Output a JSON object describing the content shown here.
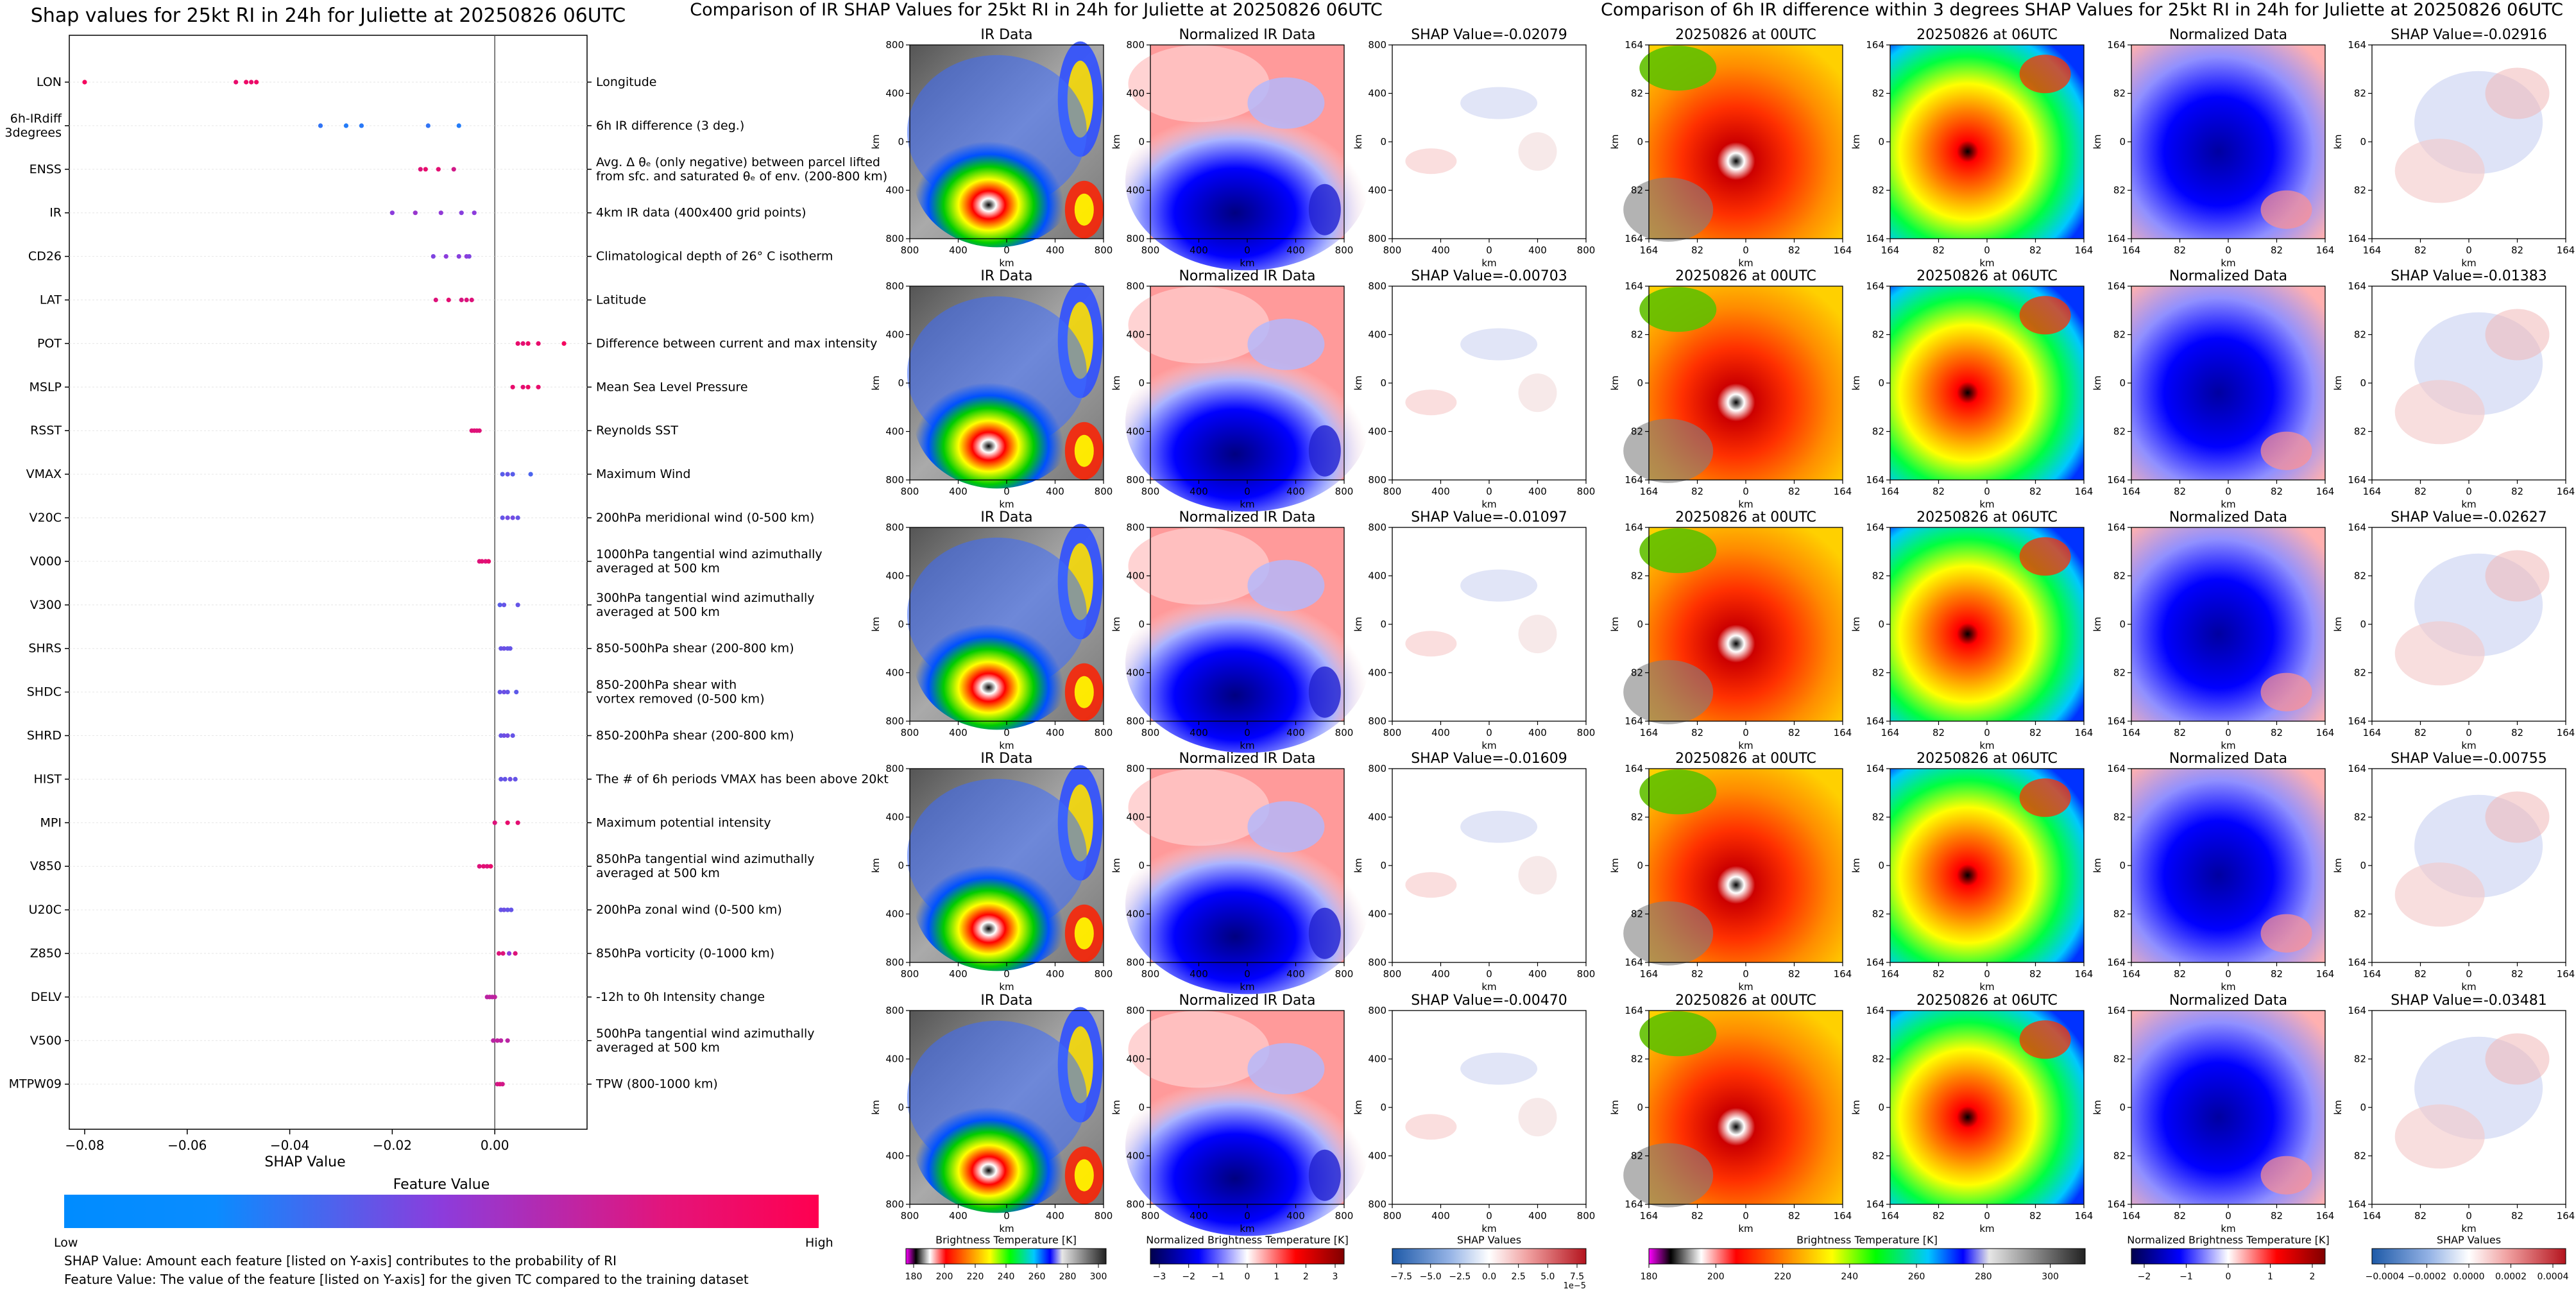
{
  "colors": {
    "low": "#0a8cff",
    "mid": "#8c3cdc",
    "high": "#ff0050",
    "axis": "#000000"
  },
  "chart_data": [
    {
      "type": "scatter",
      "title": "Shap values for 25kt RI in 24h for Juliette at 20250826 06UTC",
      "xlabel": "SHAP Value",
      "xlim": [
        -0.083,
        0.018
      ],
      "x_ticks": [
        -0.08,
        -0.06,
        -0.04,
        -0.02,
        0.0
      ],
      "x_tick_labels": [
        "−0.08",
        "−0.06",
        "−0.04",
        "−0.02",
        "0.00"
      ],
      "features": [
        {
          "name": "LON",
          "desc": [
            "Longitude"
          ],
          "points": [
            [
              -0.08,
              0.95
            ],
            [
              -0.0505,
              0.9
            ],
            [
              -0.0485,
              0.92
            ],
            [
              -0.0475,
              0.9
            ],
            [
              -0.0465,
              0.93
            ]
          ]
        },
        {
          "name": [
            "6h-IRdiff",
            "3degrees"
          ],
          "desc": [
            "6h IR difference (3 deg.)"
          ],
          "points": [
            [
              -0.034,
              0.15
            ],
            [
              -0.029,
              0.1
            ],
            [
              -0.026,
              0.12
            ],
            [
              -0.013,
              0.15
            ],
            [
              -0.007,
              0.1
            ]
          ]
        },
        {
          "name": "ENSS",
          "desc": [
            "Avg. Δ θₑ (only negative) between parcel lifted",
            "from sfc. and saturated θₑ of env. (200-800 km)"
          ],
          "points": [
            [
              -0.0145,
              0.85
            ],
            [
              -0.0135,
              0.9
            ],
            [
              -0.011,
              0.88
            ],
            [
              -0.008,
              0.8
            ]
          ]
        },
        {
          "name": "IR",
          "desc": [
            "4km IR data (400x400 grid points)"
          ],
          "points": [
            [
              -0.02,
              0.5
            ],
            [
              -0.0155,
              0.55
            ],
            [
              -0.0105,
              0.52
            ],
            [
              -0.0065,
              0.48
            ],
            [
              -0.004,
              0.5
            ]
          ]
        },
        {
          "name": "CD26",
          "desc": [
            "Climatological depth of 26° C isotherm"
          ],
          "points": [
            [
              -0.012,
              0.45
            ],
            [
              -0.0095,
              0.5
            ],
            [
              -0.007,
              0.48
            ],
            [
              -0.0055,
              0.5
            ],
            [
              -0.005,
              0.45
            ]
          ]
        },
        {
          "name": "LAT",
          "desc": [
            "Latitude"
          ],
          "points": [
            [
              -0.0115,
              0.85
            ],
            [
              -0.009,
              0.88
            ],
            [
              -0.0065,
              0.82
            ],
            [
              -0.0055,
              0.85
            ],
            [
              -0.0045,
              0.85
            ]
          ]
        },
        {
          "name": "POT",
          "desc": [
            "Difference between current and max intensity"
          ],
          "points": [
            [
              0.0045,
              0.9
            ],
            [
              0.0055,
              0.88
            ],
            [
              0.0065,
              0.92
            ],
            [
              0.0085,
              0.9
            ],
            [
              0.0135,
              0.95
            ]
          ]
        },
        {
          "name": "MSLP",
          "desc": [
            "Mean Sea Level Pressure"
          ],
          "points": [
            [
              0.0035,
              0.9
            ],
            [
              0.0055,
              0.88
            ],
            [
              0.0065,
              0.92
            ],
            [
              0.0085,
              0.9
            ]
          ]
        },
        {
          "name": "RSST",
          "desc": [
            "Reynolds SST"
          ],
          "points": [
            [
              -0.0045,
              0.85
            ],
            [
              -0.004,
              0.87
            ],
            [
              -0.0035,
              0.85
            ],
            [
              -0.003,
              0.86
            ]
          ]
        },
        {
          "name": "VMAX",
          "desc": [
            "Maximum Wind"
          ],
          "points": [
            [
              0.0015,
              0.3
            ],
            [
              0.0025,
              0.35
            ],
            [
              0.0035,
              0.3
            ],
            [
              0.007,
              0.25
            ]
          ]
        },
        {
          "name": "V20C",
          "desc": [
            "200hPa meridional wind (0-500 km)"
          ],
          "points": [
            [
              0.0015,
              0.35
            ],
            [
              0.0025,
              0.4
            ],
            [
              0.0035,
              0.4
            ],
            [
              0.0045,
              0.35
            ]
          ]
        },
        {
          "name": "V000",
          "desc": [
            "1000hPa tangential wind azimuthally",
            "averaged at 500 km"
          ],
          "points": [
            [
              -0.003,
              0.85
            ],
            [
              -0.0025,
              0.88
            ],
            [
              -0.0018,
              0.85
            ],
            [
              -0.0012,
              0.9
            ]
          ]
        },
        {
          "name": "V300",
          "desc": [
            "300hPa tangential wind azimuthally",
            "averaged at 500 km"
          ],
          "points": [
            [
              0.001,
              0.3
            ],
            [
              0.0018,
              0.35
            ],
            [
              0.0045,
              0.35
            ]
          ]
        },
        {
          "name": "SHRS",
          "desc": [
            "850-500hPa shear (200-800 km)"
          ],
          "points": [
            [
              0.0012,
              0.35
            ],
            [
              0.0018,
              0.38
            ],
            [
              0.0025,
              0.35
            ],
            [
              0.003,
              0.35
            ]
          ]
        },
        {
          "name": "SHDC",
          "desc": [
            "850-200hPa shear with",
            "vortex removed (0-500 km)"
          ],
          "points": [
            [
              0.001,
              0.35
            ],
            [
              0.0018,
              0.38
            ],
            [
              0.0025,
              0.35
            ],
            [
              0.0042,
              0.32
            ]
          ]
        },
        {
          "name": "SHRD",
          "desc": [
            "850-200hPa shear (200-800 km)"
          ],
          "points": [
            [
              0.0012,
              0.35
            ],
            [
              0.0018,
              0.38
            ],
            [
              0.0025,
              0.4
            ],
            [
              0.0035,
              0.35
            ]
          ]
        },
        {
          "name": "HIST",
          "desc": [
            "The # of 6h periods VMAX has been above 20kt"
          ],
          "points": [
            [
              0.0012,
              0.35
            ],
            [
              0.002,
              0.35
            ],
            [
              0.003,
              0.38
            ],
            [
              0.004,
              0.35
            ]
          ]
        },
        {
          "name": "MPI",
          "desc": [
            "Maximum potential intensity"
          ],
          "points": [
            [
              0.0,
              0.85
            ],
            [
              0.0025,
              0.9
            ],
            [
              0.0045,
              0.88
            ]
          ]
        },
        {
          "name": "V850",
          "desc": [
            "850hPa tangential wind azimuthally",
            "averaged at 500 km"
          ],
          "points": [
            [
              -0.003,
              0.85
            ],
            [
              -0.0022,
              0.88
            ],
            [
              -0.0015,
              0.85
            ],
            [
              -0.0008,
              0.9
            ]
          ]
        },
        {
          "name": "U20C",
          "desc": [
            "200hPa zonal wind (0-500 km)"
          ],
          "points": [
            [
              0.0012,
              0.35
            ],
            [
              0.0018,
              0.38
            ],
            [
              0.0025,
              0.35
            ],
            [
              0.0032,
              0.35
            ]
          ]
        },
        {
          "name": "Z850",
          "desc": [
            "850hPa vorticity (0-1000 km)"
          ],
          "points": [
            [
              0.0008,
              0.85
            ],
            [
              0.0016,
              0.85
            ],
            [
              0.0028,
              0.5
            ],
            [
              0.004,
              0.85
            ]
          ]
        },
        {
          "name": "DELV",
          "desc": [
            "-12h to 0h Intensity change"
          ],
          "points": [
            [
              -0.0015,
              0.7
            ],
            [
              -0.001,
              0.72
            ],
            [
              -0.0005,
              0.7
            ],
            [
              0.0,
              0.72
            ]
          ]
        },
        {
          "name": "V500",
          "desc": [
            "500hPa tangential wind azimuthally",
            "averaged at 500 km"
          ],
          "points": [
            [
              -0.0003,
              0.7
            ],
            [
              0.0005,
              0.72
            ],
            [
              0.0012,
              0.7
            ],
            [
              0.0025,
              0.7
            ]
          ]
        },
        {
          "name": "MTPW09",
          "desc": [
            "TPW (800-1000 km)"
          ],
          "points": [
            [
              0.0005,
              0.8
            ],
            [
              0.001,
              0.85
            ],
            [
              0.0015,
              0.8
            ]
          ]
        }
      ],
      "colorbar": {
        "title": "Feature Value",
        "low_label": "Low",
        "high_label": "High"
      },
      "notes": [
        "SHAP Value: Amount each feature [listed on Y-axis] contributes to the probability of RI",
        "Feature Value: The value of the feature [listed on Y-axis] for the given TC compared to the training dataset"
      ]
    },
    {
      "type": "heatmap",
      "title": "Comparison of IR SHAP Values for 25kt RI in 24h for Juliette at 20250826 06UTC",
      "km_ticks": [
        "800",
        "400",
        "0",
        "400",
        "800"
      ],
      "axis_label": "km",
      "column_titles": [
        "IR Data",
        "Normalized IR Data"
      ],
      "shap_titles": [
        "SHAP Value=-0.02079",
        "SHAP Value=-0.00703",
        "SHAP Value=-0.01097",
        "SHAP Value=-0.01609",
        "SHAP Value=-0.00470"
      ],
      "colorbars": [
        {
          "label": "Brightness Temperature [K]",
          "ticks": [
            "180",
            "200",
            "220",
            "240",
            "260",
            "280",
            "300"
          ]
        },
        {
          "label": "Normalized Brightness Temperature [K]",
          "ticks": [
            "−3",
            "−2",
            "−1",
            "0",
            "1",
            "2",
            "3"
          ]
        },
        {
          "label": "SHAP Values",
          "ticks": [
            "−7.5",
            "−5.0",
            "−2.5",
            "0.0",
            "2.5",
            "5.0",
            "7.5"
          ],
          "exponent": "1e−5"
        }
      ]
    },
    {
      "type": "heatmap",
      "title": "Comparison of 6h IR difference within 3 degrees SHAP Values for 25kt RI in 24h for Juliette at 20250826 06UTC",
      "km_ticks": [
        "164",
        "82",
        "0",
        "82",
        "164"
      ],
      "axis_label": "km",
      "column_titles": [
        "20250826 at 00UTC",
        "20250826 at 06UTC",
        "Normalized Data"
      ],
      "shap_titles": [
        "SHAP Value=-0.02916",
        "SHAP Value=-0.01383",
        "SHAP Value=-0.02627",
        "SHAP Value=-0.00755",
        "SHAP Value=-0.03481"
      ],
      "colorbars": [
        {
          "label": "Brightness Temperature [K]",
          "ticks": [
            "180",
            "200",
            "220",
            "240",
            "260",
            "280",
            "300"
          ]
        },
        {
          "label": "Normalized Brightness Temperature [K]",
          "ticks": [
            "−2",
            "−1",
            "0",
            "1",
            "2"
          ]
        },
        {
          "label": "SHAP Values",
          "ticks": [
            "−0.0004",
            "−0.0002",
            "0.0000",
            "0.0002",
            "0.0004"
          ]
        }
      ]
    }
  ]
}
